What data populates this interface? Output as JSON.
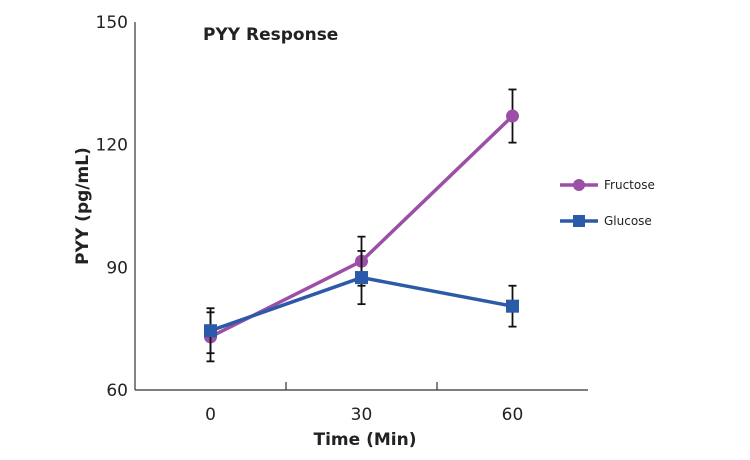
{
  "chart_data": {
    "type": "line",
    "title": "PYY Response",
    "xlabel": "Time (Min)",
    "ylabel": "PYY (pg/mL)",
    "x": [
      0,
      30,
      60
    ],
    "x_tick_labels": [
      "0",
      "30",
      "60"
    ],
    "xlim": [
      -15,
      75
    ],
    "ylim": [
      60,
      150
    ],
    "y_ticks": [
      60,
      90,
      120,
      150
    ],
    "grid": false,
    "legend_position": "right",
    "series": [
      {
        "name": "Fructose",
        "color": "#9b4fa6",
        "marker": "circle",
        "values": [
          73,
          91.5,
          127
        ],
        "error": [
          6,
          6,
          6.5
        ]
      },
      {
        "name": "Glucose",
        "color": "#2b5aa8",
        "marker": "square",
        "values": [
          74.5,
          87.5,
          80.5
        ],
        "error": [
          5.5,
          6.5,
          5
        ]
      }
    ]
  }
}
